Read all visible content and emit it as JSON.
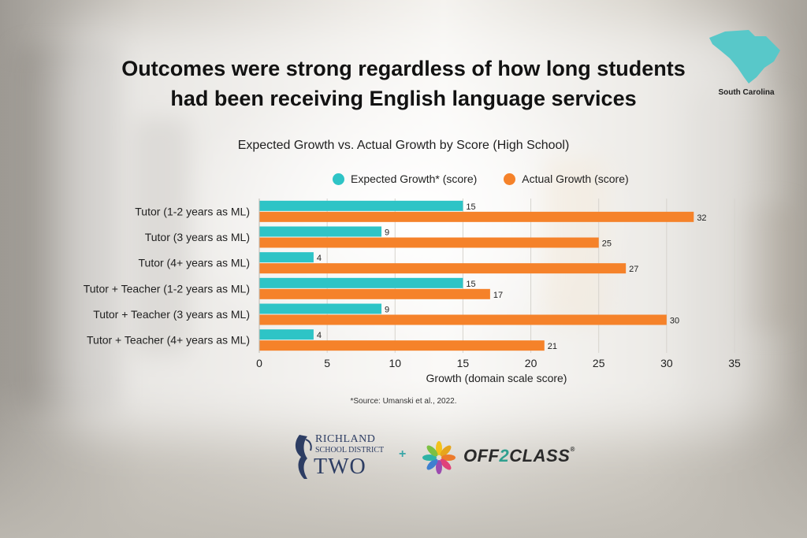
{
  "header": {
    "title_line1": "Outcomes were strong regardless of how long students",
    "title_line2": "had been receiving English language services",
    "region_label": "South Carolina"
  },
  "colors": {
    "expected": "#2ec4c6",
    "actual": "#f5822a",
    "grid": "#d6d3cd"
  },
  "chart_data": {
    "type": "bar",
    "orientation": "horizontal",
    "title": "Expected Growth vs. Actual Growth by Score (High School)",
    "xlabel": "Growth (domain scale score)",
    "ylabel": "",
    "categories": [
      "Tutor (1-2 years as ML)",
      "Tutor (3 years as ML)",
      "Tutor (4+ years as ML)",
      "Tutor + Teacher (1-2 years as ML)",
      "Tutor + Teacher (3 years as ML)",
      "Tutor + Teacher (4+ years as ML)"
    ],
    "series": [
      {
        "name": "Expected Growth* (score)",
        "values": [
          15,
          9,
          4,
          15,
          9,
          4
        ]
      },
      {
        "name": "Actual Growth (score)",
        "values": [
          32,
          25,
          27,
          17,
          30,
          21
        ]
      }
    ],
    "xlim": [
      0,
      35
    ],
    "xticks": [
      0,
      5,
      10,
      15,
      20,
      25,
      30,
      35
    ],
    "grid": "vertical",
    "legend": "top",
    "data_labels": true
  },
  "footer": {
    "source": "*Source: Umanski et al., 2022.",
    "logo_left_line1": "RICHLAND",
    "logo_left_line2": "SCHOOL DISTRICT",
    "logo_left_line3": "TWO",
    "plus": "+",
    "logo_right_a": "OFF",
    "logo_right_b": "2",
    "logo_right_c": "CLASS",
    "logo_right_mark": "®"
  }
}
